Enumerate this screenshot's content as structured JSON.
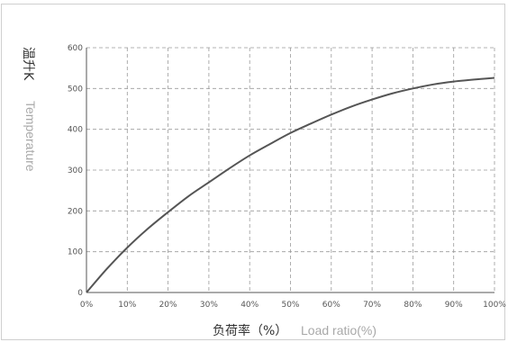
{
  "chart_data": {
    "type": "line",
    "title": "",
    "xlabel_cn": "负荷率（%）",
    "xlabel_en": "Load ratio(%)",
    "ylabel_cn": "温升K",
    "ylabel_en": "Temperature",
    "xlim": [
      0,
      100
    ],
    "ylim": [
      0,
      600
    ],
    "grid": true,
    "x_ticks": [
      "0%",
      "10%",
      "20%",
      "30%",
      "40%",
      "50%",
      "60%",
      "70%",
      "80%",
      "90%",
      "100%"
    ],
    "y_ticks": [
      "0",
      "100",
      "200",
      "300",
      "400",
      "500",
      "600"
    ],
    "series": [
      {
        "name": "",
        "color": "#555555",
        "x": [
          0,
          5,
          10,
          15,
          20,
          25,
          30,
          35,
          40,
          45,
          50,
          55,
          60,
          65,
          70,
          75,
          80,
          85,
          90,
          95,
          100
        ],
        "y": [
          0,
          58,
          110,
          156,
          197,
          236,
          270,
          304,
          336,
          364,
          391,
          414,
          436,
          456,
          473,
          488,
          500,
          510,
          517,
          522,
          526
        ]
      }
    ]
  }
}
